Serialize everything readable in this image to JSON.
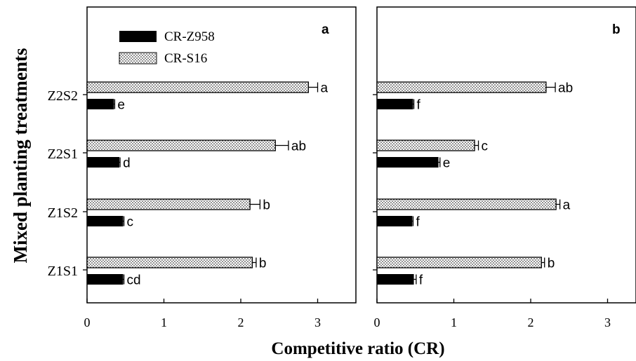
{
  "colors": {
    "black": "#000000",
    "white": "#ffffff"
  },
  "chart_data": {
    "type": "bar",
    "orientation": "horizontal",
    "ylabel": "Mixed planting treatments",
    "xlabel": "Competitive ratio (CR)",
    "categories": [
      "Z2S2",
      "Z2S1",
      "Z1S2",
      "Z1S1"
    ],
    "legend": {
      "placement": "top-left of panel a",
      "entries": [
        {
          "name": "CR-Z958",
          "fill": "solid-black"
        },
        {
          "name": "CR-S16",
          "fill": "dotted"
        }
      ]
    },
    "panels": [
      {
        "label": "a",
        "xlim": [
          0,
          3.5
        ],
        "xticks": [
          "0",
          "1",
          "2",
          "3"
        ],
        "series": [
          {
            "name": "CR-S16",
            "values": [
              2.88,
              2.45,
              2.12,
              2.15
            ],
            "errors": [
              0.12,
              0.17,
              0.13,
              0.05
            ],
            "letters": [
              "a",
              "ab",
              "b",
              "b"
            ]
          },
          {
            "name": "CR-Z958",
            "values": [
              0.35,
              0.42,
              0.47,
              0.47
            ],
            "errors": [
              0.01,
              0.01,
              0.01,
              0.01
            ],
            "letters": [
              "e",
              "d",
              "c",
              "cd"
            ]
          }
        ]
      },
      {
        "label": "b",
        "xlim": [
          0,
          3.5
        ],
        "xticks": [
          "0",
          "1",
          "2",
          "3"
        ],
        "series": [
          {
            "name": "CR-S16",
            "values": [
              2.2,
              1.27,
              2.33,
              2.14
            ],
            "errors": [
              0.12,
              0.05,
              0.05,
              0.04
            ],
            "letters": [
              "ab",
              "c",
              "a",
              "b"
            ]
          },
          {
            "name": "CR-Z958",
            "values": [
              0.47,
              0.8,
              0.46,
              0.48
            ],
            "errors": [
              0.01,
              0.02,
              0.01,
              0.03
            ],
            "letters": [
              "f",
              "e",
              "f",
              "f"
            ]
          }
        ]
      }
    ]
  }
}
